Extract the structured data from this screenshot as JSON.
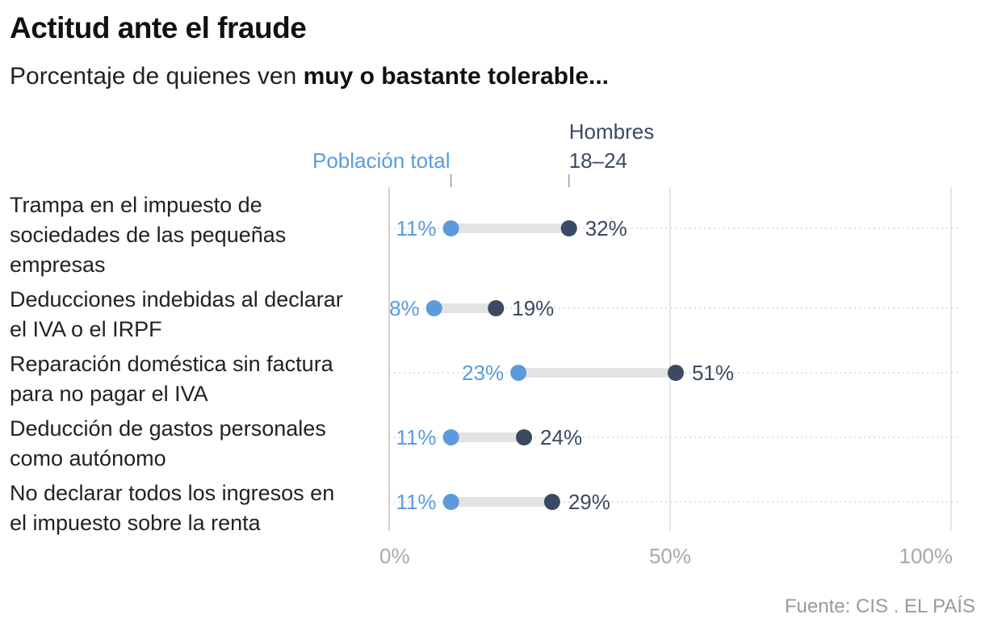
{
  "title": "Actitud ante el fraude",
  "subtitle": {
    "prefix": "Porcentaje de quienes ven ",
    "emphasis": "muy o bastante tolerable..."
  },
  "source": "Fuente: CIS . EL PAÍS",
  "colors": {
    "poblacion_total": "#5b9bdc",
    "hombres_18_24": "#3b4a63",
    "connector": "#e3e3e3",
    "gridline": "#dddddd"
  },
  "chart_data": {
    "type": "dot-range",
    "xlim": [
      0,
      100
    ],
    "x_ticks": [
      {
        "value": 0,
        "label": "0%"
      },
      {
        "value": 50,
        "label": "50%"
      },
      {
        "value": 100,
        "label": "100%"
      }
    ],
    "series": [
      {
        "name": "Población total",
        "values": [
          11,
          8,
          23,
          11,
          11
        ],
        "labels": [
          "11%",
          "8%",
          "23%",
          "11%",
          "11%"
        ]
      },
      {
        "name": "Hombres 18–24",
        "name_lines": [
          "Hombres",
          "18–24"
        ],
        "values": [
          32,
          19,
          51,
          24,
          29
        ],
        "labels": [
          "32%",
          "19%",
          "51%",
          "24%",
          "29%"
        ]
      }
    ],
    "categories": [
      {
        "lines": [
          "Trampa en el impuesto de",
          "sociedades de las pequeñas",
          "empresas"
        ]
      },
      {
        "lines": [
          "Deducciones indebidas al declarar",
          "el IVA o el IRPF"
        ]
      },
      {
        "lines": [
          "Reparación doméstica sin factura",
          "para no pagar el IVA"
        ]
      },
      {
        "lines": [
          "Deducción de gastos personales",
          "como autónomo"
        ]
      },
      {
        "lines": [
          "No declarar todos los ingresos en",
          "el impuesto sobre la renta"
        ]
      }
    ]
  }
}
